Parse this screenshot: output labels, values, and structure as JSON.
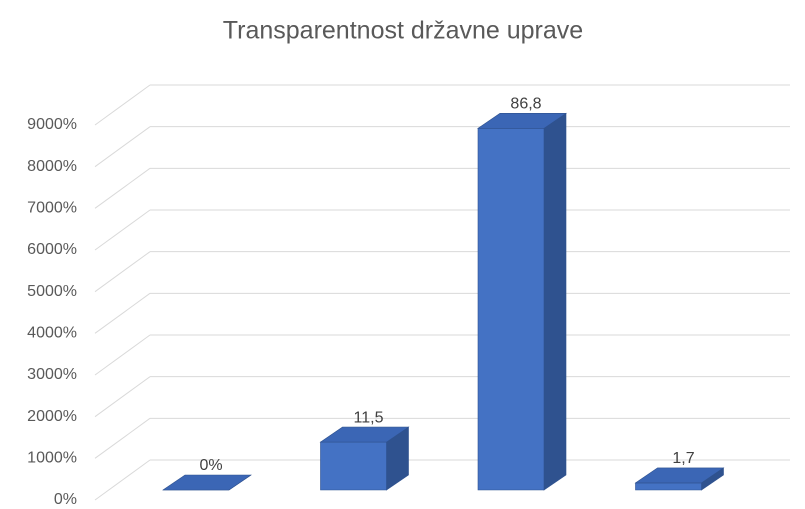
{
  "chart_data": {
    "type": "bar3d",
    "title": "Transparentnost državne uprave",
    "categories": [
      null,
      null,
      null,
      null
    ],
    "values": [
      0,
      1150,
      8680,
      170
    ],
    "value_labels": [
      "0%",
      "11,5",
      "86,8",
      "1,7"
    ],
    "color": "#4472c4",
    "ylim": [
      0,
      9000
    ],
    "yticks": [
      {
        "value": 0,
        "label": "0%"
      },
      {
        "value": 1000,
        "label": "1000%"
      },
      {
        "value": 2000,
        "label": "2000%"
      },
      {
        "value": 3000,
        "label": "3000%"
      },
      {
        "value": 4000,
        "label": "4000%"
      },
      {
        "value": 5000,
        "label": "5000%"
      },
      {
        "value": 6000,
        "label": "6000%"
      },
      {
        "value": 7000,
        "label": "7000%"
      },
      {
        "value": 8000,
        "label": "8000%"
      },
      {
        "value": 9000,
        "label": "9000%"
      }
    ],
    "grid": true
  }
}
